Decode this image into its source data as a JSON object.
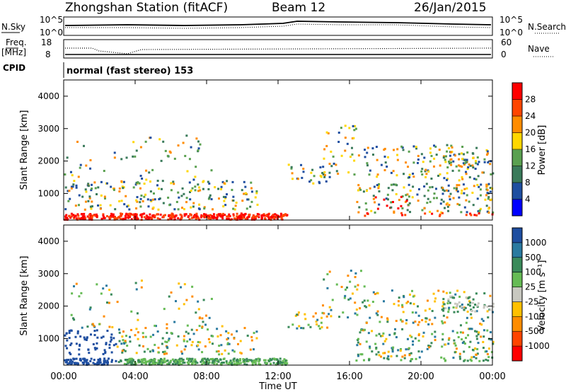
{
  "header": {
    "title": "Zhongshan Station (fitACF)",
    "beam": "Beam 12",
    "date": "26/Jan/2015"
  },
  "aux": {
    "nsky_label": "N.Sky",
    "nsky_ticks": [
      "10^5",
      "10^0"
    ],
    "nsearch_label": "N.Search",
    "nsearch_ticks": [
      "10^5",
      "10^0"
    ],
    "freq_label": "Freq.",
    "freq_unit": "[MHz]",
    "freq_ticks": [
      "18",
      "8"
    ],
    "nave_label": "Nave",
    "nave_ticks": [
      "60",
      "0"
    ],
    "cpid_label": "CPID",
    "cpid_value": "normal (fast stereo) 153"
  },
  "colors": {
    "power": [
      "#0000ff",
      "#1e4ea0",
      "#3a7a5a",
      "#5aa050",
      "#ffd700",
      "#ff8c00",
      "#ff4500",
      "#ff0000"
    ],
    "velocity": [
      "#ff0000",
      "#ff4500",
      "#ff8c00",
      "#ffc000",
      "#c8c8c0",
      "#66bb55",
      "#3a8a5a",
      "#2a7aa0",
      "#1e4ea0"
    ]
  },
  "chart_data": [
    {
      "type": "heatmap",
      "ylabel": "Slant Range [km]",
      "xlim": [
        "00:00",
        "00:00"
      ],
      "ylim": [
        180,
        4500
      ],
      "y_ticks": [
        1000,
        2000,
        3000,
        4000
      ],
      "colorbar_label": "Power [dB]",
      "colorbar_ticks": [
        4,
        8,
        12,
        16,
        20,
        24,
        28
      ]
    },
    {
      "type": "heatmap",
      "ylabel": "Slant Range [km]",
      "xlabel": "Time UT",
      "x_ticks": [
        "00:00",
        "04:00",
        "08:00",
        "12:00",
        "16:00",
        "20:00",
        "00:00"
      ],
      "ylim": [
        180,
        4500
      ],
      "y_ticks": [
        1000,
        2000,
        3000,
        4000
      ],
      "colorbar_label": "Velocity [m s⁻¹]",
      "colorbar_ticks": [
        1000,
        500,
        100,
        25,
        -25,
        -100,
        -500,
        -1000
      ]
    }
  ]
}
